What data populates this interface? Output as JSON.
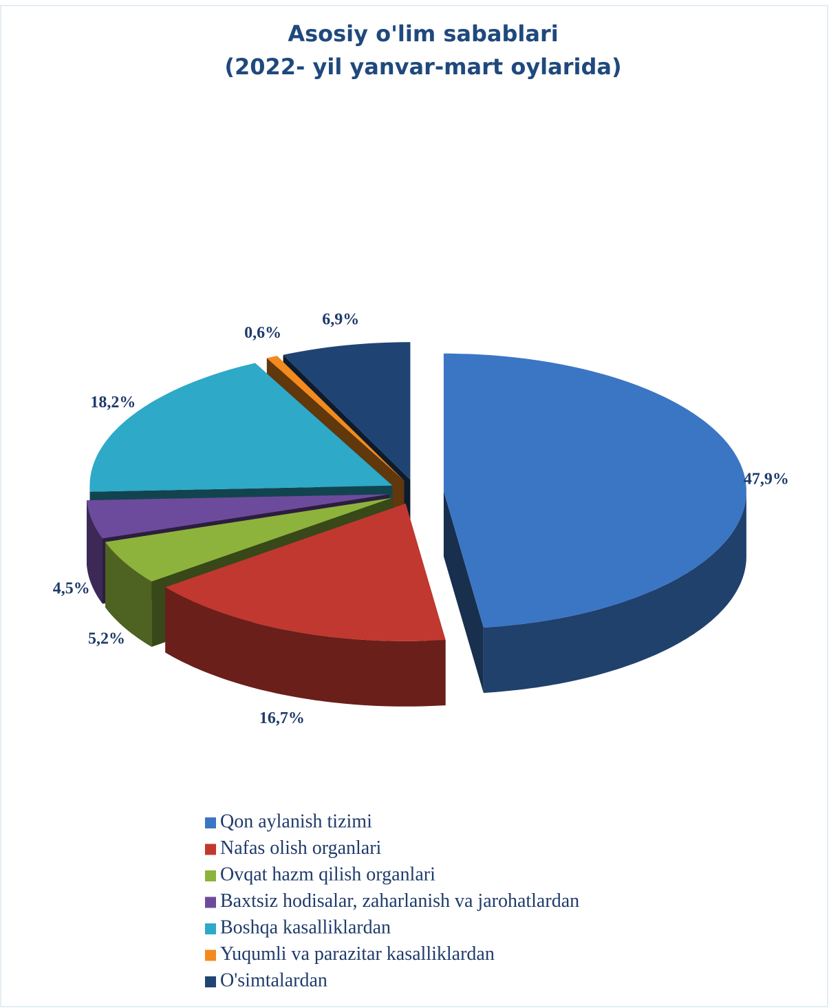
{
  "chart_data": {
    "type": "pie3d",
    "title": "Asosiy o'lim sabablari",
    "subtitle": "(2022- yil yanvar-mart oylarida)",
    "categories": [
      "Qon aylanish tizimi",
      "Nafas olish organlari",
      "Ovqat hazm qilish organlari",
      "Baxtsiz hodisalar, zaharlanish va jarohatlardan",
      "Boshqa kasalliklardan",
      "Yuqumli va parazitar kasalliklardan",
      "O'simtalardan"
    ],
    "values": [
      47.9,
      16.7,
      5.2,
      4.5,
      18.2,
      0.6,
      6.9
    ],
    "value_labels": [
      "47,9%",
      "16,7%",
      "5,2%",
      "4,5%",
      "18,2%",
      "0,6%",
      "6,9%"
    ],
    "colors": [
      "#3b76c4",
      "#c0382f",
      "#8db33c",
      "#6d4b9c",
      "#2ea9c8",
      "#f28a1e",
      "#1f4474"
    ],
    "legend": "bottom"
  }
}
